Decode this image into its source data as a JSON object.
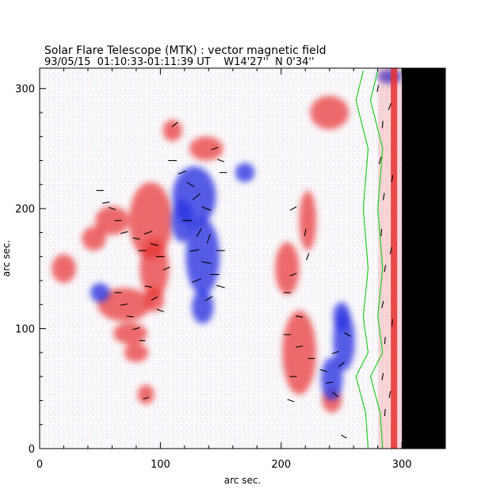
{
  "chart_data": {
    "type": "heatmap",
    "title": "Solar Flare Telescope (MTK) : vector magnetic field",
    "subtitle": "93/05/15  01:10:33-01:11:39 UT    W14'27''  N 0'34''",
    "xlabel": "arc sec.",
    "ylabel": "arc sec.",
    "xlim": [
      0,
      336
    ],
    "ylim": [
      0,
      317
    ],
    "x_ticks": [
      0,
      100,
      200,
      300
    ],
    "y_ticks": [
      0,
      100,
      200,
      300
    ],
    "x_tick_labels": [
      "0",
      "100",
      "200",
      "300"
    ],
    "y_tick_labels": [
      "0",
      "100",
      "200",
      "300"
    ],
    "polarity_colors": {
      "positive": "#e83030",
      "negative": "#2a35e0",
      "neutral": "#ffffff"
    },
    "contour_color": "#22cc22",
    "limb_color": "#000000",
    "limb_x": 300,
    "red_regions": [
      {
        "x": 60,
        "y": 190,
        "rx": 14,
        "ry": 12
      },
      {
        "x": 92,
        "y": 190,
        "rx": 18,
        "ry": 32
      },
      {
        "x": 95,
        "y": 150,
        "rx": 12,
        "ry": 25
      },
      {
        "x": 95,
        "y": 124,
        "rx": 8,
        "ry": 10
      },
      {
        "x": 70,
        "y": 120,
        "rx": 22,
        "ry": 14
      },
      {
        "x": 75,
        "y": 96,
        "rx": 14,
        "ry": 9
      },
      {
        "x": 45,
        "y": 175,
        "rx": 10,
        "ry": 10
      },
      {
        "x": 110,
        "y": 265,
        "rx": 8,
        "ry": 9
      },
      {
        "x": 138,
        "y": 250,
        "rx": 14,
        "ry": 10
      },
      {
        "x": 80,
        "y": 80,
        "rx": 10,
        "ry": 8
      },
      {
        "x": 205,
        "y": 150,
        "rx": 10,
        "ry": 22
      },
      {
        "x": 222,
        "y": 190,
        "rx": 7,
        "ry": 25
      },
      {
        "x": 215,
        "y": 80,
        "rx": 14,
        "ry": 35
      },
      {
        "x": 242,
        "y": 40,
        "rx": 8,
        "ry": 10
      },
      {
        "x": 88,
        "y": 45,
        "rx": 7,
        "ry": 8
      },
      {
        "x": 240,
        "y": 280,
        "rx": 16,
        "ry": 14
      },
      {
        "x": 20,
        "y": 150,
        "rx": 10,
        "ry": 12
      }
    ],
    "blue_regions": [
      {
        "x": 128,
        "y": 210,
        "rx": 18,
        "ry": 25
      },
      {
        "x": 135,
        "y": 160,
        "rx": 14,
        "ry": 32
      },
      {
        "x": 135,
        "y": 118,
        "rx": 9,
        "ry": 14
      },
      {
        "x": 118,
        "y": 190,
        "rx": 9,
        "ry": 18
      },
      {
        "x": 252,
        "y": 90,
        "rx": 9,
        "ry": 25
      },
      {
        "x": 242,
        "y": 58,
        "rx": 9,
        "ry": 18
      },
      {
        "x": 250,
        "y": 110,
        "rx": 7,
        "ry": 12
      },
      {
        "x": 50,
        "y": 130,
        "rx": 8,
        "ry": 8
      },
      {
        "x": 170,
        "y": 230,
        "rx": 8,
        "ry": 8
      },
      {
        "x": 290,
        "y": 310,
        "rx": 10,
        "ry": 6
      }
    ],
    "contour": [
      [
        268,
        315
      ],
      [
        262,
        290
      ],
      [
        272,
        250
      ],
      [
        268,
        200
      ],
      [
        272,
        150
      ],
      [
        268,
        110
      ],
      [
        272,
        80
      ],
      [
        262,
        60
      ],
      [
        270,
        30
      ],
      [
        272,
        0
      ]
    ],
    "vectors": [
      {
        "x": 50,
        "y": 215,
        "len": 6,
        "angle": 0
      },
      {
        "x": 55,
        "y": 205,
        "len": 6,
        "angle": 10
      },
      {
        "x": 60,
        "y": 200,
        "len": 6,
        "angle": -20
      },
      {
        "x": 65,
        "y": 190,
        "len": 6,
        "angle": 0
      },
      {
        "x": 70,
        "y": 180,
        "len": 6,
        "angle": 15
      },
      {
        "x": 80,
        "y": 175,
        "len": 6,
        "angle": -10
      },
      {
        "x": 85,
        "y": 165,
        "len": 7,
        "angle": 0
      },
      {
        "x": 90,
        "y": 180,
        "len": 7,
        "angle": 20
      },
      {
        "x": 95,
        "y": 170,
        "len": 7,
        "angle": -15
      },
      {
        "x": 100,
        "y": 160,
        "len": 7,
        "angle": 0
      },
      {
        "x": 105,
        "y": 150,
        "len": 6,
        "angle": 25
      },
      {
        "x": 90,
        "y": 135,
        "len": 6,
        "angle": -10
      },
      {
        "x": 95,
        "y": 125,
        "len": 6,
        "angle": 30
      },
      {
        "x": 100,
        "y": 115,
        "len": 6,
        "angle": -20
      },
      {
        "x": 65,
        "y": 130,
        "len": 6,
        "angle": 0
      },
      {
        "x": 70,
        "y": 120,
        "len": 6,
        "angle": 10
      },
      {
        "x": 75,
        "y": 110,
        "len": 6,
        "angle": -5
      },
      {
        "x": 80,
        "y": 100,
        "len": 6,
        "angle": 15
      },
      {
        "x": 85,
        "y": 90,
        "len": 5,
        "angle": 0
      },
      {
        "x": 110,
        "y": 240,
        "len": 7,
        "angle": 0
      },
      {
        "x": 118,
        "y": 230,
        "len": 7,
        "angle": 20
      },
      {
        "x": 125,
        "y": 220,
        "len": 7,
        "angle": -30
      },
      {
        "x": 130,
        "y": 210,
        "len": 8,
        "angle": 40
      },
      {
        "x": 138,
        "y": 200,
        "len": 8,
        "angle": -20
      },
      {
        "x": 122,
        "y": 190,
        "len": 8,
        "angle": 0
      },
      {
        "x": 132,
        "y": 180,
        "len": 8,
        "angle": 60
      },
      {
        "x": 140,
        "y": 175,
        "len": 8,
        "angle": 70
      },
      {
        "x": 128,
        "y": 165,
        "len": 8,
        "angle": 10
      },
      {
        "x": 138,
        "y": 155,
        "len": 8,
        "angle": -10
      },
      {
        "x": 145,
        "y": 145,
        "len": 8,
        "angle": 0
      },
      {
        "x": 130,
        "y": 140,
        "len": 8,
        "angle": 20
      },
      {
        "x": 150,
        "y": 135,
        "len": 7,
        "angle": -15
      },
      {
        "x": 140,
        "y": 125,
        "len": 7,
        "angle": 30
      },
      {
        "x": 150,
        "y": 165,
        "len": 7,
        "angle": 0
      },
      {
        "x": 145,
        "y": 250,
        "len": 6,
        "angle": 20
      },
      {
        "x": 150,
        "y": 240,
        "len": 6,
        "angle": -20
      },
      {
        "x": 152,
        "y": 230,
        "len": 6,
        "angle": 0
      },
      {
        "x": 112,
        "y": 270,
        "len": 6,
        "angle": 40
      },
      {
        "x": 210,
        "y": 200,
        "len": 6,
        "angle": 30
      },
      {
        "x": 220,
        "y": 180,
        "len": 6,
        "angle": 80
      },
      {
        "x": 222,
        "y": 160,
        "len": 6,
        "angle": 70
      },
      {
        "x": 210,
        "y": 145,
        "len": 6,
        "angle": 20
      },
      {
        "x": 205,
        "y": 130,
        "len": 6,
        "angle": 0
      },
      {
        "x": 215,
        "y": 110,
        "len": 6,
        "angle": -10
      },
      {
        "x": 205,
        "y": 95,
        "len": 6,
        "angle": 0
      },
      {
        "x": 215,
        "y": 85,
        "len": 6,
        "angle": 10
      },
      {
        "x": 225,
        "y": 75,
        "len": 6,
        "angle": 0
      },
      {
        "x": 235,
        "y": 65,
        "len": 6,
        "angle": -15
      },
      {
        "x": 245,
        "y": 80,
        "len": 6,
        "angle": 20
      },
      {
        "x": 255,
        "y": 95,
        "len": 6,
        "angle": -30
      },
      {
        "x": 250,
        "y": 70,
        "len": 6,
        "angle": 40
      },
      {
        "x": 240,
        "y": 55,
        "len": 6,
        "angle": 10
      },
      {
        "x": 245,
        "y": 45,
        "len": 6,
        "angle": -40
      },
      {
        "x": 210,
        "y": 60,
        "len": 6,
        "angle": 0
      },
      {
        "x": 208,
        "y": 40,
        "len": 6,
        "angle": -20
      },
      {
        "x": 252,
        "y": 10,
        "len": 5,
        "angle": -30
      },
      {
        "x": 88,
        "y": 42,
        "len": 5,
        "angle": 15
      },
      {
        "x": 280,
        "y": 300,
        "len": 6,
        "angle": 80
      },
      {
        "x": 284,
        "y": 270,
        "len": 6,
        "angle": 85
      },
      {
        "x": 282,
        "y": 240,
        "len": 6,
        "angle": 75
      },
      {
        "x": 285,
        "y": 210,
        "len": 6,
        "angle": 80
      },
      {
        "x": 283,
        "y": 180,
        "len": 6,
        "angle": 85
      },
      {
        "x": 286,
        "y": 150,
        "len": 6,
        "angle": 80
      },
      {
        "x": 284,
        "y": 120,
        "len": 6,
        "angle": 75
      },
      {
        "x": 286,
        "y": 90,
        "len": 6,
        "angle": 85
      },
      {
        "x": 284,
        "y": 60,
        "len": 6,
        "angle": 80
      },
      {
        "x": 286,
        "y": 30,
        "len": 6,
        "angle": 85
      },
      {
        "x": 290,
        "y": 285,
        "len": 6,
        "angle": 70
      },
      {
        "x": 292,
        "y": 225,
        "len": 6,
        "angle": 80
      },
      {
        "x": 291,
        "y": 165,
        "len": 6,
        "angle": 75
      },
      {
        "x": 292,
        "y": 105,
        "len": 6,
        "angle": 85
      },
      {
        "x": 290,
        "y": 45,
        "len": 6,
        "angle": 80
      }
    ]
  }
}
